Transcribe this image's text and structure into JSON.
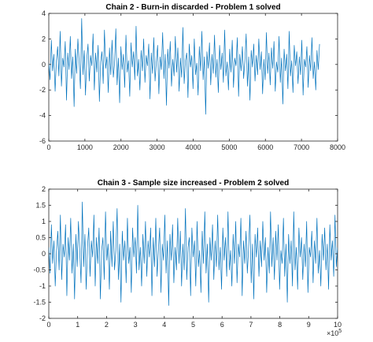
{
  "chart_data": [
    {
      "type": "line",
      "title": "Chain 2 - Burn-in discarded - Problem 1 solved",
      "xlabel": "",
      "ylabel": "",
      "xlim": [
        0,
        8000
      ],
      "ylim": [
        -6,
        4
      ],
      "xticks": [
        0,
        1000,
        2000,
        3000,
        4000,
        5000,
        6000,
        7000,
        8000
      ],
      "xtick_labels": [
        "0",
        "1000",
        "2000",
        "3000",
        "4000",
        "5000",
        "6000",
        "7000",
        "8000"
      ],
      "yticks": [
        -6,
        -4,
        -2,
        0,
        2,
        4
      ],
      "ytick_labels": [
        "-6",
        "-4",
        "-2",
        "0",
        "2",
        "4"
      ],
      "x_exponent_label": "",
      "grid": false,
      "series": [
        {
          "color": "#0072BD",
          "x_start": 0,
          "x_end": 7500,
          "values": [
            0.1,
            -1.2,
            1.9,
            -0.5,
            0.8,
            -2.1,
            0.3,
            1.4,
            -0.9,
            2.6,
            -1.7,
            0.5,
            -0.2,
            1.8,
            -2.8,
            0.9,
            -0.4,
            2.2,
            -1.1,
            0.6,
            -3.3,
            1.2,
            -0.7,
            2.0,
            0.2,
            -1.9,
            3.6,
            -0.8,
            1.1,
            -2.4,
            0.4,
            1.6,
            -1.3,
            0.7,
            -0.1,
            2.4,
            -2.0,
            0.9,
            -0.6,
            1.5,
            -2.9,
            0.2,
            1.0,
            -1.5,
            2.7,
            -0.3,
            0.6,
            -2.2,
            1.3,
            -0.8,
            1.9,
            -1.0,
            0.1,
            2.8,
            -1.6,
            0.5,
            -3.0,
            1.4,
            -0.4,
            0.8,
            -1.8,
            2.3,
            -0.6,
            0.3,
            -2.5,
            1.7,
            -0.2,
            1.0,
            -1.2,
            3.0,
            -0.9,
            0.4,
            -2.0,
            1.1,
            -0.5,
            2.0,
            -1.4,
            0.7,
            -0.1,
            1.6,
            -2.7,
            0.9,
            -0.7,
            2.1,
            -1.3,
            0.2,
            1.5,
            -2.3,
            0.6,
            -0.4,
            2.5,
            -1.1,
            0.8,
            -3.2,
            1.2,
            -0.3,
            1.8,
            -1.7,
            0.4,
            -0.9,
            2.2,
            -0.6,
            1.3,
            -2.1,
            0.5,
            -1.0,
            2.9,
            -1.5,
            0.3,
            0.9,
            -2.6,
            1.6,
            -0.2,
            0.7,
            -1.9,
            2.0,
            -0.8,
            0.1,
            -2.4,
            1.4,
            -0.5,
            2.6,
            -1.2,
            0.6,
            -3.9,
            1.0,
            -0.3,
            1.7,
            -1.6,
            0.8,
            -0.7,
            2.3,
            -1.0,
            0.4,
            -2.2,
            1.5,
            -0.4,
            0.9,
            -1.4,
            2.7,
            -0.9,
            0.2,
            -2.0,
            1.2,
            -0.6,
            1.9,
            -1.8,
            0.5,
            -0.1,
            2.1,
            -2.5,
            0.8,
            -0.5,
            1.4,
            -1.1,
            0.3,
            2.4,
            -1.7,
            0.6,
            -2.8,
            1.1,
            -0.2,
            1.6,
            -1.3,
            0.7,
            -0.8,
            2.0,
            -0.4,
            1.0,
            -2.3,
            0.4,
            -1.2,
            2.5,
            -0.7,
            0.9,
            -1.6,
            1.3,
            -0.3,
            1.8,
            -2.1,
            0.2,
            -0.6,
            2.2,
            -1.4,
            0.5,
            -3.1,
            1.2,
            -0.5,
            0.8,
            -1.9,
            2.6,
            -0.9,
            0.3,
            -2.2,
            1.5,
            -0.1,
            1.0,
            -1.5,
            0.6,
            -0.8,
            1.9,
            -2.4,
            0.4,
            -0.2,
            1.4,
            -1.8,
            0.7,
            -0.5,
            2.1,
            -1.1,
            0.2,
            -2.0,
            1.1,
            -0.4,
            1.6
          ],
          "name": ""
        }
      ]
    },
    {
      "type": "line",
      "title": "Chain 3 - Sample size increased - Problem 2 solved",
      "xlabel": "",
      "ylabel": "",
      "xlim": [
        0,
        10
      ],
      "ylim": [
        -2,
        2
      ],
      "xticks": [
        0,
        1,
        2,
        3,
        4,
        5,
        6,
        7,
        8,
        9,
        10
      ],
      "xtick_labels": [
        "0",
        "1",
        "2",
        "3",
        "4",
        "5",
        "6",
        "7",
        "8",
        "9",
        "10"
      ],
      "yticks": [
        -2,
        -1.5,
        -1,
        -0.5,
        0,
        0.5,
        1,
        1.5,
        2
      ],
      "ytick_labels": [
        "-2",
        "-1.5",
        "-1",
        "-0.5",
        "0",
        "0.5",
        "1",
        "1.5",
        "2"
      ],
      "x_exponent_label": "×10",
      "x_exponent_power": "5",
      "grid": false,
      "series": [
        {
          "color": "#0072BD",
          "x_start": 0,
          "x_end": 10,
          "values": [
            0.2,
            -0.6,
            0.9,
            -0.3,
            0.4,
            -1.0,
            0.1,
            0.7,
            -0.5,
            1.2,
            -0.8,
            0.3,
            -0.1,
            0.9,
            -1.3,
            0.5,
            -0.2,
            1.1,
            -0.6,
            0.3,
            -1.4,
            0.6,
            -0.4,
            1.0,
            0.1,
            -0.9,
            1.6,
            -0.4,
            0.6,
            -1.1,
            0.2,
            0.8,
            -0.7,
            0.4,
            -0.1,
            1.2,
            -1.0,
            0.5,
            -0.3,
            0.8,
            -1.4,
            0.1,
            0.5,
            -0.8,
            1.3,
            -0.2,
            0.3,
            -1.1,
            0.7,
            -0.4,
            1.0,
            -0.5,
            0.1,
            1.4,
            -0.8,
            0.3,
            -1.5,
            0.7,
            -0.2,
            0.4,
            -0.9,
            1.1,
            -0.3,
            0.2,
            -1.2,
            0.8,
            -0.1,
            0.5,
            -0.6,
            1.5,
            -0.5,
            0.2,
            -1.0,
            0.6,
            -0.3,
            1.0,
            -0.7,
            0.4,
            -0.1,
            0.8,
            -1.3,
            0.5,
            -0.4,
            1.1,
            -0.7,
            0.1,
            0.8,
            -1.2,
            0.3,
            -0.2,
            1.2,
            -0.6,
            0.4,
            -1.6,
            0.6,
            -0.2,
            0.9,
            -0.9,
            0.2,
            -0.5,
            1.1,
            -0.3,
            0.7,
            -1.0,
            0.3,
            -0.5,
            1.4,
            -0.8,
            0.2,
            0.5,
            -1.3,
            0.8,
            -0.1,
            0.4,
            -1.0,
            1.0,
            -0.4,
            0.1,
            -1.2,
            0.7,
            -0.3,
            1.3,
            -0.6,
            0.3,
            -1.5,
            0.5,
            -0.2,
            0.9,
            -0.8,
            0.4,
            -0.4,
            1.2,
            -0.5,
            0.2,
            -1.1,
            0.8,
            -0.2,
            0.5,
            -0.7,
            1.3,
            -0.5,
            0.1,
            -1.0,
            0.6,
            -0.3,
            1.0,
            -0.9,
            0.3,
            -0.1,
            1.1,
            -1.3,
            0.4,
            -0.3,
            0.7,
            -0.6,
            0.2,
            1.2,
            -0.9,
            0.3,
            -1.4,
            0.6,
            -0.1,
            0.8,
            -0.7,
            0.4,
            -0.4,
            1.0,
            -0.2,
            0.5,
            -1.2,
            0.2,
            -0.6,
            1.3,
            -0.4,
            0.5,
            -0.8,
            0.7,
            -0.2,
            0.9,
            -1.1,
            0.1,
            -0.3,
            1.1,
            -0.7,
            0.3,
            -1.5,
            0.6,
            -0.3,
            0.4,
            -1.0,
            1.3,
            -0.5,
            0.2,
            -1.1,
            0.8,
            -0.1,
            0.5,
            -0.8,
            0.3,
            -0.4,
            1.0,
            -1.2,
            0.2,
            -0.1,
            0.7,
            -0.9,
            0.4,
            -0.3,
            1.1,
            -0.6,
            0.1,
            -1.0,
            0.6,
            -0.2,
            0.8,
            -0.5,
            0.3,
            -1.1,
            0.9,
            -0.2,
            0.4,
            -0.7,
            1.2,
            -0.4,
            0.2
          ],
          "name": ""
        }
      ]
    }
  ]
}
